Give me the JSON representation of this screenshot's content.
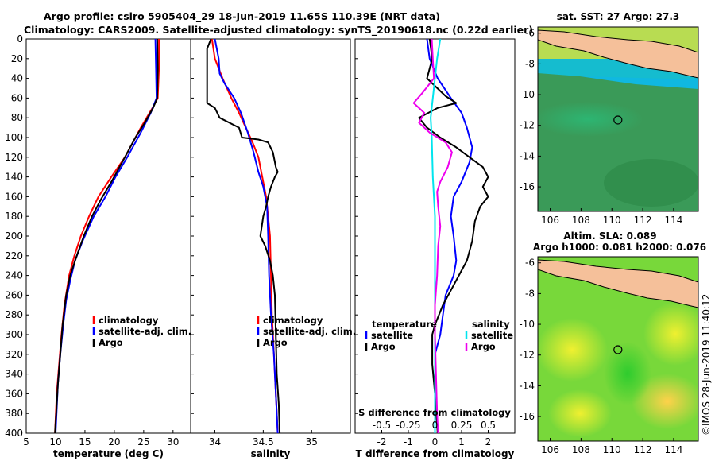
{
  "titles": {
    "line1": "Argo profile: csiro 5905404_29 18-Jun-2019 11.65S 110.39E (NRT data)",
    "line2": "Climatology: CARS2009. Satellite-adjusted climatology: synTS_20190618.nc (0.22d earlier)"
  },
  "colors": {
    "climatology": "#ff0000",
    "satellite": "#0000ff",
    "argo": "#000000",
    "sat_sal": "#00e5ee",
    "clim_sal": "#ee00ee",
    "land": "#f5c09a"
  },
  "chart_data": [
    {
      "id": "temperature",
      "type": "line",
      "xlabel": "temperature (deg C)",
      "ylim": [
        0,
        400
      ],
      "xlim": [
        5,
        33
      ],
      "xticks": [
        5,
        10,
        15,
        20,
        25,
        30
      ],
      "yticks": [
        0,
        20,
        40,
        60,
        80,
        100,
        120,
        140,
        160,
        180,
        200,
        220,
        240,
        260,
        280,
        300,
        320,
        340,
        360,
        380,
        400
      ],
      "legend": [
        "climatology",
        "satellite-adj. clim.",
        "Argo"
      ],
      "series": [
        {
          "name": "climatology",
          "color": "#ff0000",
          "points": [
            [
              27.6,
              0
            ],
            [
              27.6,
              30
            ],
            [
              27.4,
              60
            ],
            [
              26.5,
              70
            ],
            [
              24.5,
              90
            ],
            [
              21.8,
              120
            ],
            [
              19.5,
              140
            ],
            [
              17.3,
              160
            ],
            [
              15.7,
              180
            ],
            [
              14.3,
              200
            ],
            [
              13.2,
              220
            ],
            [
              12.3,
              240
            ],
            [
              11.5,
              270
            ],
            [
              11.0,
              300
            ],
            [
              10.6,
              330
            ],
            [
              10.2,
              360
            ],
            [
              9.9,
              400
            ]
          ]
        },
        {
          "name": "satellite-adj. clim.",
          "color": "#0000ff",
          "points": [
            [
              27.0,
              0
            ],
            [
              27.1,
              30
            ],
            [
              27.2,
              60
            ],
            [
              26.2,
              75
            ],
            [
              24.5,
              95
            ],
            [
              22.2,
              120
            ],
            [
              20.2,
              140
            ],
            [
              18.5,
              160
            ],
            [
              16.5,
              180
            ],
            [
              14.6,
              205
            ],
            [
              13.3,
              225
            ],
            [
              12.5,
              245
            ],
            [
              11.8,
              265
            ],
            [
              11.3,
              290
            ],
            [
              10.8,
              320
            ],
            [
              10.4,
              350
            ],
            [
              10.0,
              400
            ]
          ]
        },
        {
          "name": "Argo",
          "color": "#000000",
          "points": [
            [
              27.3,
              0
            ],
            [
              27.4,
              30
            ],
            [
              27.3,
              60
            ],
            [
              26.6,
              70
            ],
            [
              25.2,
              85
            ],
            [
              23.6,
              100
            ],
            [
              21.8,
              120
            ],
            [
              19.5,
              145
            ],
            [
              17.8,
              162
            ],
            [
              16.2,
              180
            ],
            [
              14.8,
              200
            ],
            [
              13.6,
              220
            ],
            [
              12.5,
              240
            ],
            [
              11.8,
              260
            ],
            [
              11.2,
              290
            ],
            [
              10.8,
              320
            ],
            [
              10.4,
              350
            ],
            [
              10.1,
              380
            ],
            [
              9.9,
              400
            ]
          ]
        }
      ]
    },
    {
      "id": "salinity",
      "type": "line",
      "xlabel": "salinity",
      "ylim": [
        0,
        400
      ],
      "xlim": [
        33.75,
        35.4
      ],
      "xticks": [
        34,
        34.5,
        35
      ],
      "xticklabels": [
        "34",
        "34.5",
        "35"
      ],
      "legend": [
        "climatology",
        "satellite-adj. clim.",
        "Argo"
      ],
      "series": [
        {
          "name": "climatology",
          "color": "#ff0000",
          "points": [
            [
              33.97,
              0
            ],
            [
              34.0,
              20
            ],
            [
              34.08,
              40
            ],
            [
              34.17,
              60
            ],
            [
              34.25,
              75
            ],
            [
              34.32,
              90
            ],
            [
              34.39,
              105
            ],
            [
              34.45,
              120
            ],
            [
              34.49,
              140
            ],
            [
              34.53,
              160
            ],
            [
              34.55,
              180
            ],
            [
              34.57,
              200
            ],
            [
              34.58,
              240
            ],
            [
              34.59,
              280
            ],
            [
              34.61,
              320
            ],
            [
              34.63,
              360
            ],
            [
              34.65,
              400
            ]
          ]
        },
        {
          "name": "satellite-adj. clim.",
          "color": "#0000ff",
          "points": [
            [
              34.0,
              0
            ],
            [
              34.04,
              20
            ],
            [
              34.05,
              35
            ],
            [
              34.1,
              45
            ],
            [
              34.2,
              60
            ],
            [
              34.27,
              75
            ],
            [
              34.34,
              95
            ],
            [
              34.4,
              115
            ],
            [
              34.45,
              135
            ],
            [
              34.5,
              150
            ],
            [
              34.54,
              170
            ],
            [
              34.55,
              200
            ],
            [
              34.56,
              240
            ],
            [
              34.58,
              280
            ],
            [
              34.61,
              320
            ],
            [
              34.63,
              360
            ],
            [
              34.65,
              400
            ]
          ]
        },
        {
          "name": "Argo",
          "color": "#000000",
          "points": [
            [
              33.96,
              0
            ],
            [
              33.92,
              10
            ],
            [
              33.92,
              40
            ],
            [
              33.92,
              65
            ],
            [
              34.0,
              70
            ],
            [
              34.05,
              80
            ],
            [
              34.15,
              85
            ],
            [
              34.25,
              90
            ],
            [
              34.28,
              100
            ],
            [
              34.45,
              102
            ],
            [
              34.55,
              105
            ],
            [
              34.6,
              115
            ],
            [
              34.62,
              125
            ],
            [
              34.63,
              130
            ],
            [
              34.65,
              135
            ],
            [
              34.62,
              140
            ],
            [
              34.58,
              150
            ],
            [
              34.55,
              160
            ],
            [
              34.53,
              170
            ],
            [
              34.5,
              180
            ],
            [
              34.47,
              200
            ],
            [
              34.52,
              210
            ],
            [
              34.57,
              225
            ],
            [
              34.6,
              240
            ],
            [
              34.62,
              260
            ],
            [
              34.63,
              300
            ],
            [
              34.64,
              340
            ],
            [
              34.66,
              370
            ],
            [
              34.67,
              400
            ]
          ]
        }
      ]
    },
    {
      "id": "difference",
      "type": "line",
      "xlabel": "T difference from climatology",
      "xlabel2": "S difference from climatology",
      "ylim": [
        0,
        400
      ],
      "xlim": [
        -3,
        3
      ],
      "xticks": [
        -2,
        -1,
        0,
        1,
        2
      ],
      "x2ticks": [
        -0.5,
        -0.25,
        0,
        0.25,
        0.5
      ],
      "x2ticklabels": [
        "-0.5",
        "-0.25",
        "0",
        "0.25",
        "0.5"
      ],
      "x2lim": [
        -0.75,
        0.75
      ],
      "legend_temperature_title": "temperature",
      "legend_salinity_title": "salinity",
      "legend_temperature": [
        "satellite",
        "Argo"
      ],
      "legend_salinity": [
        "satellite",
        "Argo"
      ],
      "series": [
        {
          "name": "T satellite",
          "color": "#0000ff",
          "axis": "T",
          "points": [
            [
              -0.3,
              0
            ],
            [
              -0.2,
              20
            ],
            [
              0.1,
              40
            ],
            [
              0.6,
              60
            ],
            [
              1.0,
              75
            ],
            [
              1.2,
              90
            ],
            [
              1.4,
              110
            ],
            [
              1.3,
              125
            ],
            [
              1.0,
              145
            ],
            [
              0.7,
              160
            ],
            [
              0.6,
              180
            ],
            [
              0.7,
              200
            ],
            [
              0.8,
              225
            ],
            [
              0.7,
              240
            ],
            [
              0.4,
              260
            ],
            [
              0.3,
              280
            ],
            [
              0.2,
              300
            ],
            [
              0.0,
              320
            ],
            [
              0.0,
              400
            ]
          ]
        },
        {
          "name": "T Argo",
          "color": "#000000",
          "axis": "T",
          "points": [
            [
              -0.2,
              0
            ],
            [
              -0.1,
              20
            ],
            [
              -0.3,
              40
            ],
            [
              0.4,
              58
            ],
            [
              0.8,
              65
            ],
            [
              0.1,
              70
            ],
            [
              -0.6,
              80
            ],
            [
              -0.3,
              90
            ],
            [
              0.2,
              100
            ],
            [
              0.8,
              110
            ],
            [
              1.3,
              120
            ],
            [
              1.8,
              130
            ],
            [
              2.0,
              140
            ],
            [
              1.8,
              150
            ],
            [
              2.0,
              160
            ],
            [
              1.7,
              170
            ],
            [
              1.5,
              185
            ],
            [
              1.4,
              205
            ],
            [
              1.2,
              225
            ],
            [
              0.9,
              240
            ],
            [
              0.6,
              255
            ],
            [
              0.3,
              270
            ],
            [
              0.0,
              290
            ],
            [
              -0.1,
              300
            ],
            [
              -0.1,
              330
            ],
            [
              0.0,
              360
            ],
            [
              0.1,
              400
            ]
          ]
        },
        {
          "name": "S satellite",
          "color": "#00e5ee",
          "axis": "S",
          "points": [
            [
              0.05,
              0
            ],
            [
              0.02,
              20
            ],
            [
              0.0,
              40
            ],
            [
              -0.02,
              60
            ],
            [
              -0.04,
              80
            ],
            [
              -0.03,
              100
            ],
            [
              -0.02,
              140
            ],
            [
              0.0,
              180
            ],
            [
              0.0,
              220
            ],
            [
              0.0,
              260
            ],
            [
              0.0,
              300
            ],
            [
              0.0,
              340
            ],
            [
              0.0,
              400
            ]
          ]
        },
        {
          "name": "S Argo",
          "color": "#ee00ee",
          "axis": "S",
          "points": [
            [
              -0.03,
              0
            ],
            [
              -0.02,
              20
            ],
            [
              -0.01,
              40
            ],
            [
              -0.12,
              55
            ],
            [
              -0.2,
              65
            ],
            [
              -0.1,
              75
            ],
            [
              -0.15,
              85
            ],
            [
              -0.05,
              95
            ],
            [
              0.1,
              105
            ],
            [
              0.16,
              115
            ],
            [
              0.12,
              130
            ],
            [
              0.05,
              145
            ],
            [
              0.02,
              155
            ],
            [
              0.03,
              170
            ],
            [
              0.05,
              190
            ],
            [
              0.03,
              210
            ],
            [
              0.02,
              240
            ],
            [
              0.0,
              270
            ],
            [
              0.0,
              300
            ],
            [
              0.01,
              340
            ],
            [
              0.02,
              380
            ],
            [
              0.03,
              400
            ]
          ]
        }
      ]
    }
  ],
  "maps": {
    "sst": {
      "title": "sat. SST: 27 Argo: 27.3",
      "xticks": [
        106,
        108,
        110,
        112,
        114
      ],
      "yticks": [
        -6,
        -8,
        -10,
        -12,
        -14,
        -16
      ],
      "argo_marker": {
        "lon": 110.39,
        "lat": -11.65
      }
    },
    "sla": {
      "title1": "Altim. SLA: 0.089",
      "title2": "Argo h1000: 0.081 h2000: 0.076",
      "xticks": [
        106,
        108,
        110,
        112,
        114
      ],
      "yticks": [
        -6,
        -8,
        -10,
        -12,
        -14,
        -16
      ],
      "argo_marker": {
        "lon": 110.39,
        "lat": -11.65
      }
    }
  },
  "credit": "©IMOS 28-Jun-2019 11:40:12"
}
